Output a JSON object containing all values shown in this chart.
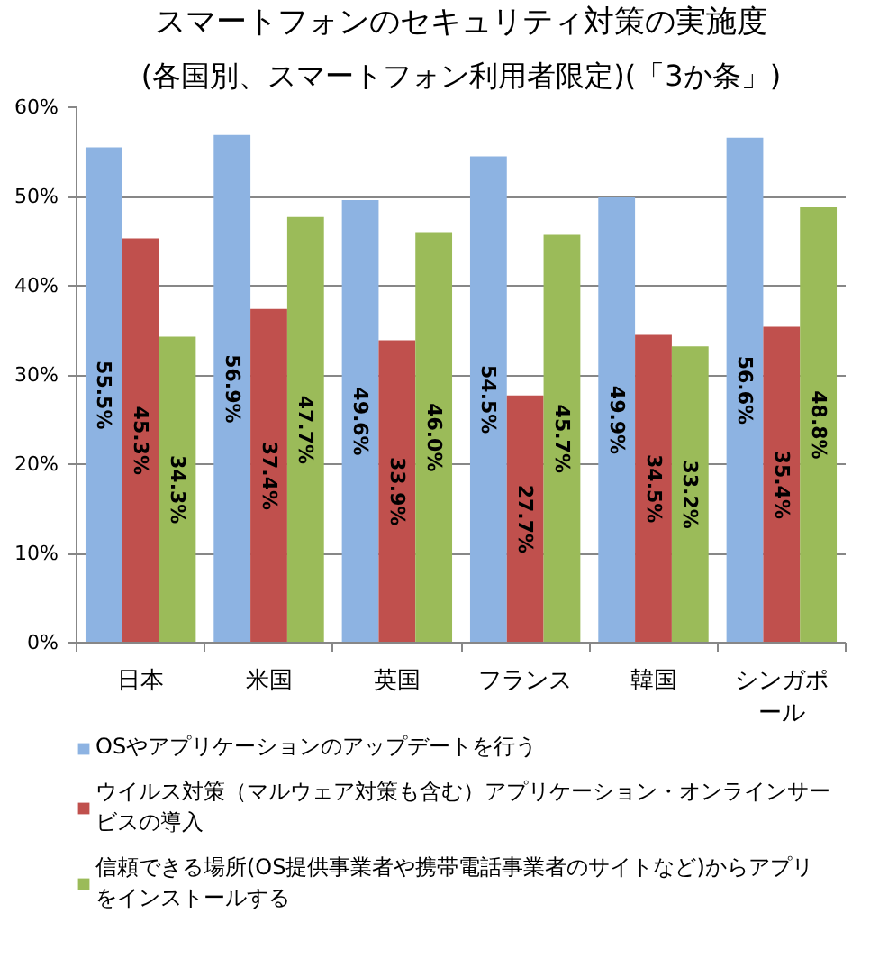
{
  "chart_data": {
    "type": "bar",
    "title": "スマートフォンのセキュリティ対策の実施度",
    "subtitle": "(各国別、スマートフォン利用者限定)(「3か条」)",
    "categories": [
      "日本",
      "米国",
      "英国",
      "フランス",
      "韓国",
      "シンガポール"
    ],
    "series": [
      {
        "name": "OSやアプリケーションのアップデートを行う",
        "color": "#8db3e2",
        "values": [
          55.5,
          56.9,
          49.6,
          54.5,
          49.9,
          56.6
        ],
        "value_labels": [
          "55.5%",
          "56.9%",
          "49.6%",
          "54.5%",
          "49.9%",
          "56.6%"
        ]
      },
      {
        "name": "ウイルス対策（マルウェア対策も含む）アプリケーション・オンラインサービスの導入",
        "color": "#c0504d",
        "values": [
          45.3,
          37.4,
          33.9,
          27.7,
          34.5,
          35.4
        ],
        "value_labels": [
          "45.3%",
          "37.4%",
          "33.9%",
          "27.7%",
          "34.5%",
          "35.4%"
        ]
      },
      {
        "name": "信頼できる場所(OS提供事業者や携帯電話事業者のサイトなど)からアプリをインストールする",
        "color": "#9bbb59",
        "values": [
          34.3,
          47.7,
          46.0,
          45.7,
          33.2,
          48.8
        ],
        "value_labels": [
          "34.3%",
          "47.7%",
          "46.0%",
          "45.7%",
          "33.2%",
          "48.8%"
        ]
      }
    ],
    "ylim": [
      0,
      60
    ],
    "yticks": [
      {
        "value": 0,
        "label": "0%"
      },
      {
        "value": 10,
        "label": "10%"
      },
      {
        "value": 20,
        "label": "20%"
      },
      {
        "value": 30,
        "label": "30%"
      },
      {
        "value": 40,
        "label": "40%"
      },
      {
        "value": 50,
        "label": "50%"
      },
      {
        "value": 60,
        "label": "60%"
      }
    ],
    "grid": "y",
    "legend": "bottom"
  }
}
